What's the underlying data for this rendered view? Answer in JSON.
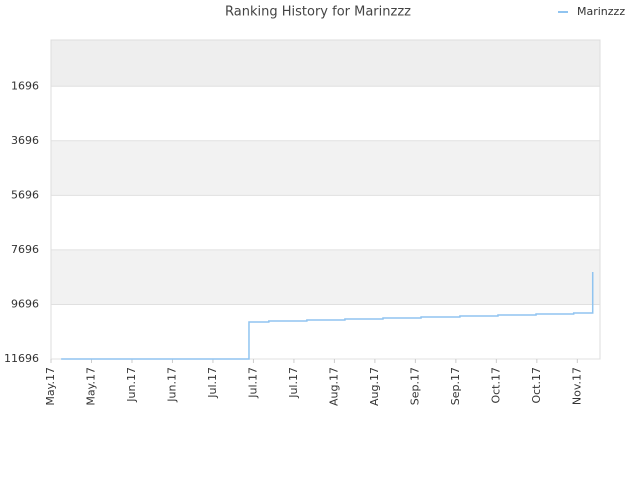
{
  "chart_data": {
    "type": "line",
    "title": "Ranking History for Marinzzz",
    "x": [
      0.25,
      4.89,
      4.89,
      5.38,
      5.38,
      6.32,
      6.32,
      7.26,
      7.26,
      8.2,
      8.2,
      9.14,
      9.14,
      10.1,
      10.1,
      11.04,
      11.04,
      11.98,
      11.98,
      12.91,
      12.91,
      13.38,
      13.38
    ],
    "series": [
      {
        "name": "Marinzzz",
        "color": "#90c4f0",
        "values": [
          11696,
          11696,
          10340,
          10340,
          10303,
          10303,
          10266,
          10266,
          10230,
          10230,
          10193,
          10193,
          10156,
          10156,
          10119,
          10119,
          10083,
          10083,
          10046,
          10046,
          10009,
          10009,
          8506
        ]
      }
    ],
    "xlim": [
      0,
      13.56
    ],
    "xticks": [
      {
        "value": 0,
        "label": "May.17"
      },
      {
        "value": 1,
        "label": "May.17"
      },
      {
        "value": 2,
        "label": "Jun.17"
      },
      {
        "value": 3,
        "label": "Jun.17"
      },
      {
        "value": 4,
        "label": "Jul.17"
      },
      {
        "value": 5,
        "label": "Jul.17"
      },
      {
        "value": 6,
        "label": "Jul.17"
      },
      {
        "value": 7,
        "label": "Aug.17"
      },
      {
        "value": 8,
        "label": "Aug.17"
      },
      {
        "value": 9,
        "label": "Sep.17"
      },
      {
        "value": 10,
        "label": "Sep.17"
      },
      {
        "value": 11,
        "label": "Oct.17"
      },
      {
        "value": 12,
        "label": "Oct.17"
      },
      {
        "value": 13,
        "label": "Nov.17"
      }
    ],
    "ylim": [
      11696,
      0
    ],
    "yticks": [
      1696,
      3696,
      5696,
      7696,
      9696,
      11696
    ],
    "grid": true,
    "legend": "top-right"
  }
}
